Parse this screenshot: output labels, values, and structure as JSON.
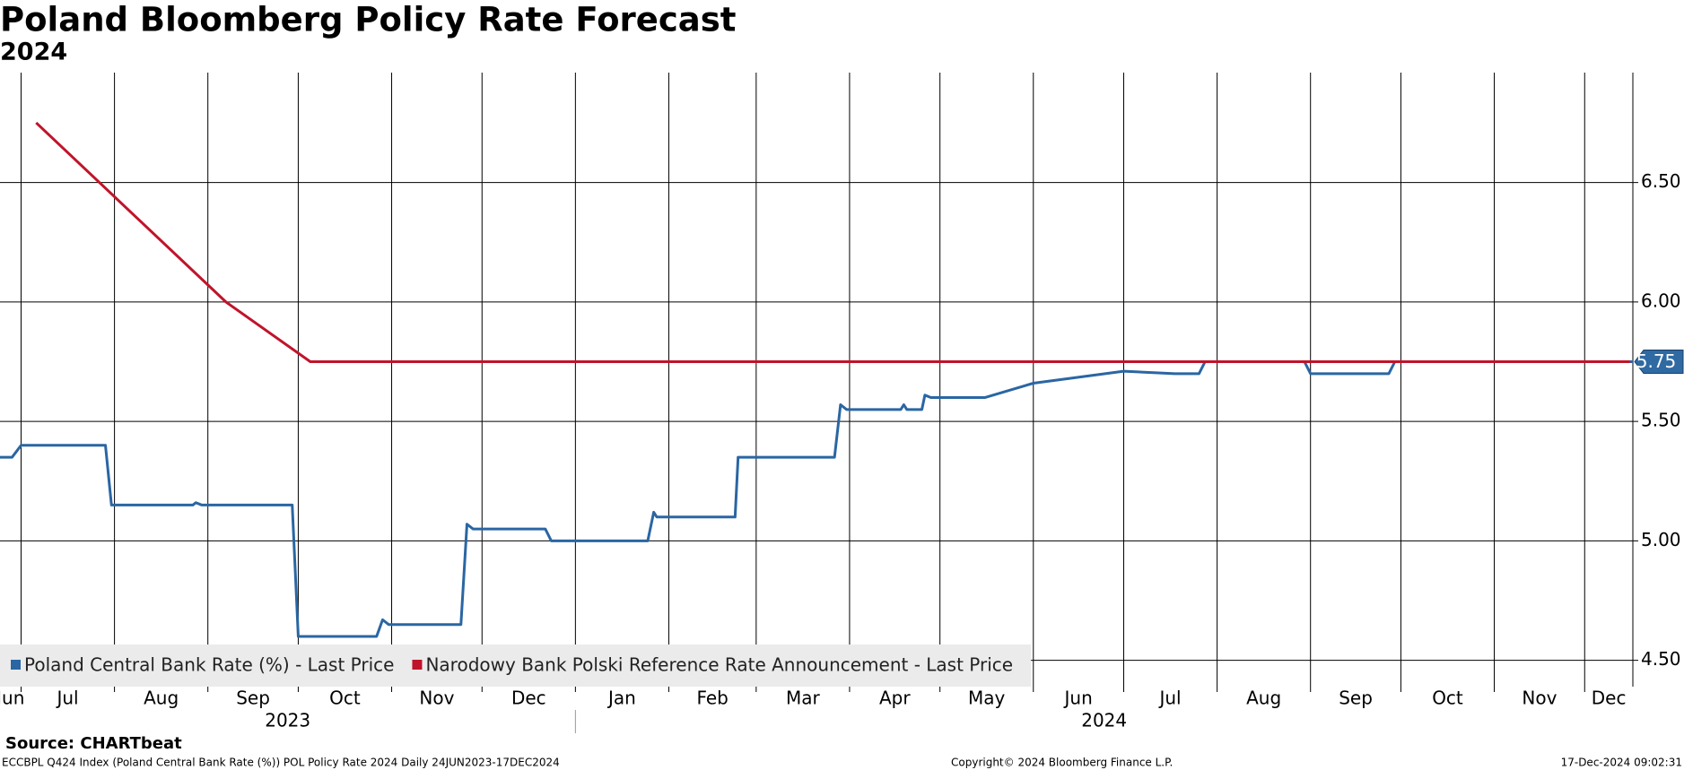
{
  "chart_data": {
    "type": "line",
    "title": "Poland Bloomberg Policy Rate Forecast",
    "subtitle": "2024",
    "xlim": [
      "2023-06-24",
      "2024-12-17"
    ],
    "ylim": [
      4.39,
      6.96
    ],
    "yticks": [
      {
        "value": 4.5,
        "label": "4.50"
      },
      {
        "value": 5.0,
        "label": "5.00"
      },
      {
        "value": 5.5,
        "label": "5.50"
      },
      {
        "value": 6.0,
        "label": "6.00"
      },
      {
        "value": 6.5,
        "label": "6.50"
      }
    ],
    "months": [
      {
        "value": "2023-06",
        "label": "Jun"
      },
      {
        "value": "2023-07",
        "label": "Jul"
      },
      {
        "value": "2023-08",
        "label": "Aug"
      },
      {
        "value": "2023-09",
        "label": "Sep"
      },
      {
        "value": "2023-10",
        "label": "Oct"
      },
      {
        "value": "2023-11",
        "label": "Nov"
      },
      {
        "value": "2023-12",
        "label": "Dec"
      },
      {
        "value": "2024-01",
        "label": "Jan"
      },
      {
        "value": "2024-02",
        "label": "Feb"
      },
      {
        "value": "2024-03",
        "label": "Mar"
      },
      {
        "value": "2024-04",
        "label": "Apr"
      },
      {
        "value": "2024-05",
        "label": "May"
      },
      {
        "value": "2024-06",
        "label": "Jun"
      },
      {
        "value": "2024-07",
        "label": "Jul"
      },
      {
        "value": "2024-08",
        "label": "Aug"
      },
      {
        "value": "2024-09",
        "label": "Sep"
      },
      {
        "value": "2024-10",
        "label": "Oct"
      },
      {
        "value": "2024-11",
        "label": "Nov"
      },
      {
        "value": "2024-12",
        "label": "Dec"
      }
    ],
    "years": [
      2023,
      2024
    ],
    "grid": true,
    "legend": "bottom-left",
    "series": [
      {
        "name": "Poland Central Bank Rate (%) - Last Price",
        "color": "#2a66a3",
        "x": [
          "2023-06-24",
          "2023-06-28",
          "2023-07-01",
          "2023-07-29",
          "2023-07-31",
          "2023-08-27",
          "2023-08-28",
          "2023-08-30",
          "2023-09-29",
          "2023-10-01",
          "2023-10-27",
          "2023-10-29",
          "2023-10-31",
          "2023-11-24",
          "2023-11-26",
          "2023-11-28",
          "2023-12-22",
          "2023-12-24",
          "2024-01-25",
          "2024-01-27",
          "2024-01-28",
          "2024-02-23",
          "2024-02-24",
          "2024-03-27",
          "2024-03-29",
          "2024-03-31",
          "2024-04-18",
          "2024-04-19",
          "2024-04-20",
          "2024-04-25",
          "2024-04-26",
          "2024-04-28",
          "2024-05-16",
          "2024-06-01",
          "2024-07-01",
          "2024-07-18",
          "2024-07-26",
          "2024-07-28",
          "2024-08-30",
          "2024-09-01",
          "2024-09-27",
          "2024-09-29",
          "2024-12-17"
        ],
        "values": [
          5.35,
          5.35,
          5.4,
          5.4,
          5.15,
          5.15,
          5.16,
          5.15,
          5.15,
          4.6,
          4.6,
          4.67,
          4.65,
          4.65,
          5.07,
          5.05,
          5.05,
          5.0,
          5.0,
          5.12,
          5.1,
          5.1,
          5.35,
          5.35,
          5.57,
          5.55,
          5.55,
          5.57,
          5.55,
          5.55,
          5.61,
          5.6,
          5.6,
          5.66,
          5.71,
          5.7,
          5.7,
          5.75,
          5.75,
          5.7,
          5.7,
          5.75,
          5.75
        ]
      },
      {
        "name": "Narodowy Bank Polski Reference Rate Announcement - Last Price",
        "color": "#c0142a",
        "x": [
          "2023-07-06",
          "2023-09-07",
          "2023-10-05",
          "2024-12-16"
        ],
        "values": [
          6.75,
          6.0,
          5.75,
          5.75
        ],
        "last_value_label": "5.75"
      }
    ],
    "source": "Source: CHARTbeat",
    "footer_left": "ECCBPL Q424 Index (Poland Central Bank Rate (%)) POL Policy Rate 2024  Daily 24JUN2023-17DEC2024",
    "copyright": "Copyright© 2024 Bloomberg Finance L.P.",
    "timestamp": "17-Dec-2024 09:02:31"
  }
}
